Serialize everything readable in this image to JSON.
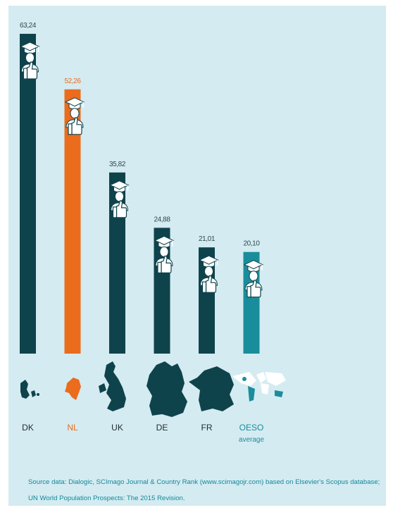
{
  "colors": {
    "background": "#d4ebf1",
    "dark_bar": "#0f434c",
    "highlight": "#ea6c1c",
    "oeso_bar": "#1a8d9c",
    "value_text": "#2d4a52",
    "source_text": "#12899a"
  },
  "chart_data": {
    "type": "bar",
    "title": "",
    "xlabel": "",
    "ylabel": "",
    "categories": [
      "DK",
      "NL",
      "UK",
      "DE",
      "FR",
      "OESO"
    ],
    "category_sublabels": [
      "",
      "",
      "",
      "",
      "",
      "average"
    ],
    "values": [
      63.24,
      52.26,
      35.82,
      24.88,
      21.01,
      20.1
    ],
    "value_labels": [
      "63,24",
      "52,26",
      "35,82",
      "24,88",
      "21,01",
      "20,10"
    ],
    "bar_colors": [
      "#0f434c",
      "#ea6c1c",
      "#0f434c",
      "#0f434c",
      "#0f434c",
      "#1a8d9c"
    ],
    "icons": [
      "graduate-thumbs-up-icon",
      "map-silhouette-icon"
    ],
    "grid": false,
    "legend": "none"
  },
  "source_note": "Source data: Dialogic, SCImago Journal & Country Rank (www.scimagojr.com) based on Elsevier's Scopus database; UN World Population Prospects: The 2015 Revision."
}
